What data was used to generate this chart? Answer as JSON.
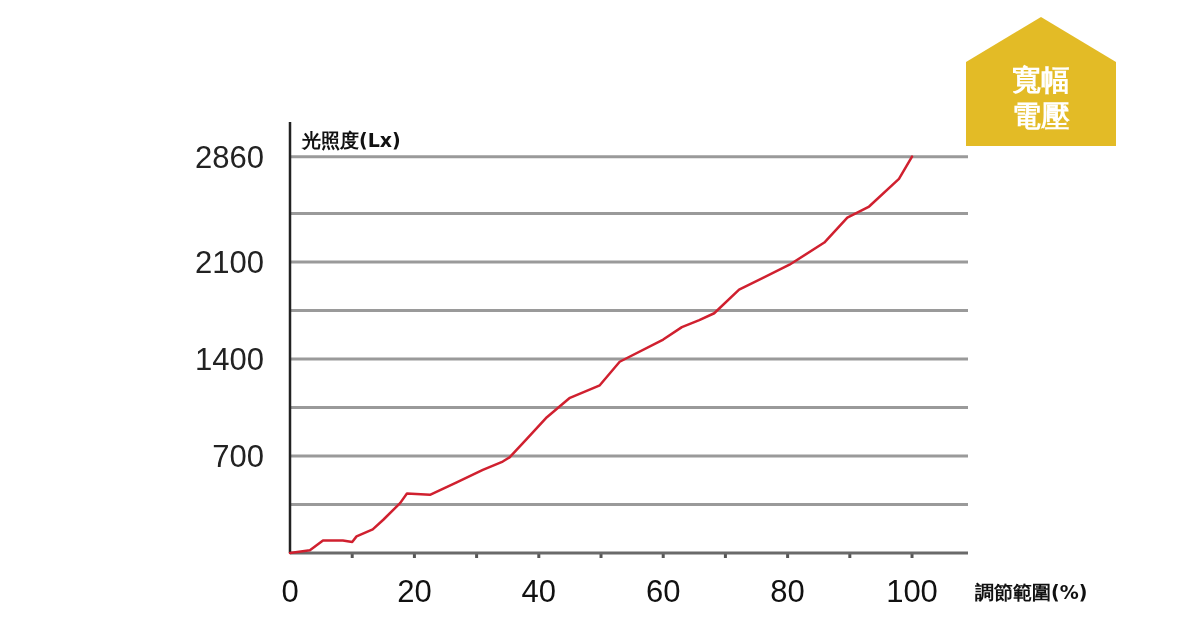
{
  "chart_data": {
    "type": "line",
    "xlabel": "調節範圍(%)",
    "ylabel": "光照度(Lx)",
    "x": [
      0,
      3.2,
      5.3,
      8.5,
      10,
      10.7,
      13.3,
      15,
      17.7,
      18.8,
      22.5,
      26.8,
      31,
      34.2,
      35.3,
      38,
      41.3,
      45,
      49.8,
      53,
      60,
      63,
      65.8,
      68.2,
      72.2,
      80.3,
      85.9,
      89.6,
      93.1,
      97.9,
      100
    ],
    "series": [
      {
        "color": "#d0202f",
        "values": [
          0,
          20,
          90,
          90,
          80,
          120,
          170,
          240,
          360,
          430,
          420,
          510,
          600,
          660,
          690,
          820,
          980,
          1120,
          1210,
          1380,
          1540,
          1630,
          1680,
          1730,
          1900,
          2080,
          2240,
          2420,
          2500,
          2700,
          2860
        ]
      }
    ],
    "xlim": [
      0,
      109
    ],
    "ylim": [
      0,
      3110
    ],
    "xticks": [
      0,
      {
        "value": 10,
        "label": null
      },
      20,
      {
        "value": 30,
        "label": null
      },
      40,
      {
        "value": 50,
        "label": null
      },
      60,
      {
        "value": 70,
        "label": null
      },
      80,
      {
        "value": 90,
        "label": null
      },
      100
    ],
    "yticks": [
      {
        "value": 0,
        "label": null
      },
      {
        "value": 350,
        "label": null
      },
      700,
      {
        "value": 1050,
        "label": null
      },
      1400,
      {
        "value": 1750,
        "label": null
      },
      2100,
      {
        "value": 2450,
        "label": null
      },
      2860
    ],
    "grid": "y",
    "marker": "none",
    "line_style": "solid",
    "annotations": [
      "寬幅",
      "電壓"
    ]
  }
}
